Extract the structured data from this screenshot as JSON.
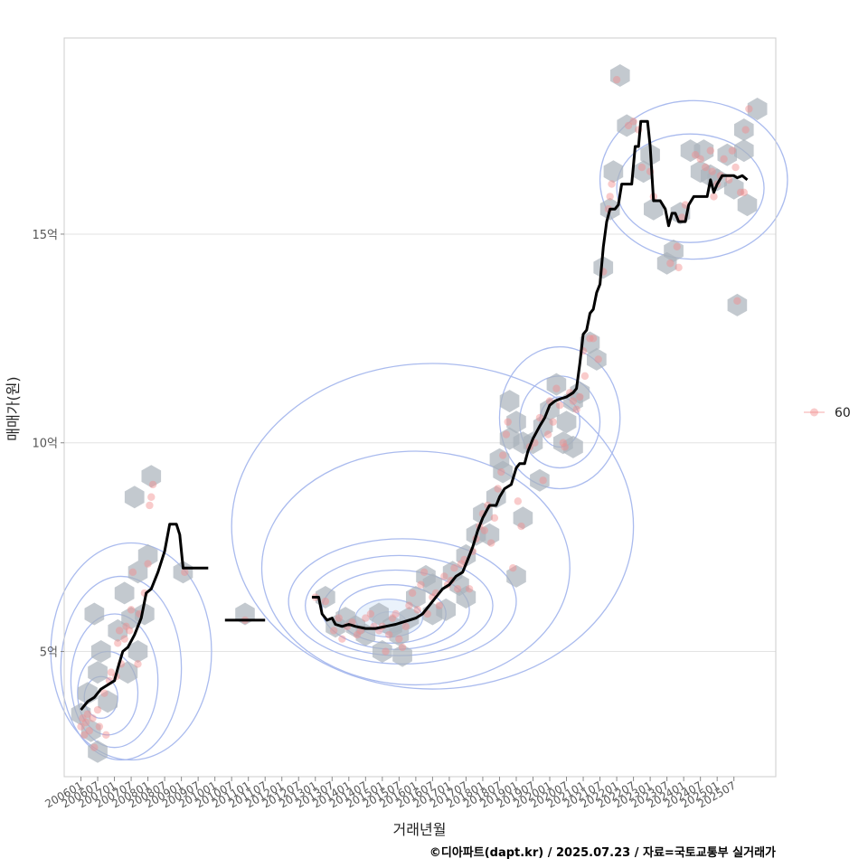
{
  "chart_data": {
    "type": "scatter",
    "xlabel": "거래년월",
    "ylabel": "매매가(원)",
    "caption": "©디아파트(dapt.kr) / 2025.07.23 / 자료=국토교통부 실거래가",
    "legend": {
      "label": "60",
      "color": "#f28b8b",
      "placement": "right"
    },
    "grid": true,
    "xlim": [
      2005.5,
      2026.75
    ],
    "ylim": [
      2.0,
      19.7
    ],
    "y_ticks": [
      {
        "value": 5,
        "label": "5억"
      },
      {
        "value": 10,
        "label": "10억"
      },
      {
        "value": 15,
        "label": "15억"
      }
    ],
    "x_ticks": [
      "200601",
      "200607",
      "200701",
      "200707",
      "200801",
      "200807",
      "200901",
      "200907",
      "201001",
      "201007",
      "201101",
      "201107",
      "201201",
      "201207",
      "201301",
      "201307",
      "201401",
      "201407",
      "201501",
      "201507",
      "201601",
      "201607",
      "201701",
      "201707",
      "201801",
      "201807",
      "201901",
      "201907",
      "202001",
      "202007",
      "202101",
      "202107",
      "202201",
      "202207",
      "202301",
      "202307",
      "202401",
      "202407",
      "202501",
      "202507"
    ],
    "colors": {
      "trend": "#000000",
      "points": "#f28b8b",
      "hex": "#a9b2bb",
      "contour": "#aabbee"
    },
    "trend_segments": [
      [
        [
          2006.0,
          3.6
        ],
        [
          2006.2,
          3.8
        ],
        [
          2006.4,
          3.9
        ],
        [
          2006.6,
          4.1
        ],
        [
          2006.8,
          4.2
        ],
        [
          2007.0,
          4.3
        ],
        [
          2007.1,
          4.6
        ],
        [
          2007.25,
          5.0
        ],
        [
          2007.4,
          5.1
        ],
        [
          2007.6,
          5.4
        ],
        [
          2007.8,
          5.8
        ],
        [
          2007.95,
          6.4
        ],
        [
          2008.1,
          6.5
        ],
        [
          2008.3,
          6.9
        ],
        [
          2008.5,
          7.4
        ],
        [
          2008.65,
          8.05
        ],
        [
          2008.85,
          8.05
        ],
        [
          2008.95,
          7.8
        ],
        [
          2009.05,
          7.0
        ],
        [
          2009.3,
          7.0
        ],
        [
          2009.6,
          7.0
        ],
        [
          2009.8,
          7.0
        ]
      ],
      [
        [
          2010.3,
          5.75
        ],
        [
          2010.9,
          5.75
        ],
        [
          2011.5,
          5.75
        ]
      ],
      [
        [
          2012.9,
          6.3
        ],
        [
          2013.1,
          6.3
        ],
        [
          2013.2,
          5.9
        ],
        [
          2013.35,
          5.75
        ],
        [
          2013.5,
          5.8
        ],
        [
          2013.6,
          5.65
        ],
        [
          2013.8,
          5.6
        ],
        [
          2014.0,
          5.65
        ],
        [
          2014.2,
          5.6
        ],
        [
          2014.5,
          5.55
        ],
        [
          2014.8,
          5.55
        ],
        [
          2015.1,
          5.6
        ],
        [
          2015.4,
          5.65
        ],
        [
          2015.6,
          5.7
        ],
        [
          2015.8,
          5.75
        ],
        [
          2016.0,
          5.8
        ],
        [
          2016.2,
          5.9
        ],
        [
          2016.4,
          6.1
        ],
        [
          2016.6,
          6.3
        ],
        [
          2016.8,
          6.5
        ],
        [
          2017.0,
          6.6
        ],
        [
          2017.2,
          6.8
        ],
        [
          2017.4,
          6.9
        ],
        [
          2017.55,
          7.2
        ],
        [
          2017.7,
          7.5
        ],
        [
          2017.85,
          7.9
        ],
        [
          2018.0,
          8.2
        ],
        [
          2018.2,
          8.5
        ],
        [
          2018.4,
          8.5
        ],
        [
          2018.5,
          8.7
        ],
        [
          2018.65,
          8.9
        ],
        [
          2018.85,
          9.0
        ],
        [
          2019.0,
          9.4
        ],
        [
          2019.1,
          9.5
        ],
        [
          2019.25,
          9.5
        ],
        [
          2019.35,
          9.8
        ],
        [
          2019.5,
          10.1
        ],
        [
          2019.7,
          10.4
        ],
        [
          2019.85,
          10.6
        ],
        [
          2020.0,
          10.9
        ],
        [
          2020.15,
          11.0
        ],
        [
          2020.3,
          11.05
        ],
        [
          2020.5,
          11.1
        ],
        [
          2020.7,
          11.2
        ],
        [
          2020.8,
          11.3
        ],
        [
          2020.9,
          11.9
        ],
        [
          2021.0,
          12.6
        ],
        [
          2021.1,
          12.7
        ],
        [
          2021.2,
          13.1
        ],
        [
          2021.3,
          13.2
        ],
        [
          2021.4,
          13.6
        ],
        [
          2021.5,
          13.8
        ],
        [
          2021.6,
          14.7
        ],
        [
          2021.7,
          15.3
        ],
        [
          2021.8,
          15.6
        ],
        [
          2021.95,
          15.6
        ],
        [
          2022.05,
          15.7
        ],
        [
          2022.15,
          16.2
        ],
        [
          2022.45,
          16.2
        ],
        [
          2022.55,
          17.1
        ],
        [
          2022.65,
          17.1
        ],
        [
          2022.72,
          17.7
        ],
        [
          2022.92,
          17.7
        ],
        [
          2023.0,
          17.1
        ],
        [
          2023.1,
          15.8
        ],
        [
          2023.3,
          15.8
        ],
        [
          2023.45,
          15.6
        ],
        [
          2023.55,
          15.2
        ],
        [
          2023.65,
          15.5
        ],
        [
          2023.75,
          15.5
        ],
        [
          2023.85,
          15.3
        ],
        [
          2024.05,
          15.3
        ],
        [
          2024.15,
          15.7
        ],
        [
          2024.3,
          15.9
        ],
        [
          2024.5,
          15.9
        ],
        [
          2024.7,
          15.9
        ],
        [
          2024.8,
          16.3
        ],
        [
          2024.9,
          16.0
        ],
        [
          2025.0,
          16.2
        ],
        [
          2025.15,
          16.4
        ],
        [
          2025.5,
          16.4
        ],
        [
          2025.6,
          16.35
        ],
        [
          2025.75,
          16.4
        ],
        [
          2025.9,
          16.3
        ]
      ]
    ],
    "points": [
      [
        2006.0,
        3.2
      ],
      [
        2006.05,
        3.4
      ],
      [
        2006.1,
        3.0
      ],
      [
        2006.15,
        3.3
      ],
      [
        2006.2,
        3.5
      ],
      [
        2006.25,
        3.1
      ],
      [
        2006.35,
        3.4
      ],
      [
        2006.4,
        2.7
      ],
      [
        2006.5,
        3.6
      ],
      [
        2006.55,
        3.2
      ],
      [
        2006.7,
        4.0
      ],
      [
        2006.75,
        3.0
      ],
      [
        2006.85,
        4.3
      ],
      [
        2006.9,
        4.5
      ],
      [
        2007.05,
        4.4
      ],
      [
        2007.1,
        5.2
      ],
      [
        2007.15,
        5.5
      ],
      [
        2007.2,
        4.7
      ],
      [
        2007.3,
        5.3
      ],
      [
        2007.35,
        5.6
      ],
      [
        2007.45,
        5.5
      ],
      [
        2007.5,
        6.0
      ],
      [
        2007.55,
        6.9
      ],
      [
        2007.7,
        4.7
      ],
      [
        2007.75,
        5.9
      ],
      [
        2007.9,
        6.4
      ],
      [
        2008.0,
        7.1
      ],
      [
        2008.05,
        8.5
      ],
      [
        2008.1,
        8.7
      ],
      [
        2008.15,
        9.0
      ],
      [
        2009.1,
        6.9
      ],
      [
        2010.9,
        5.75
      ],
      [
        2013.0,
        6.3
      ],
      [
        2013.3,
        6.2
      ],
      [
        2013.55,
        5.5
      ],
      [
        2013.7,
        5.8
      ],
      [
        2013.8,
        5.3
      ],
      [
        2013.95,
        5.6
      ],
      [
        2014.1,
        5.7
      ],
      [
        2014.25,
        5.4
      ],
      [
        2014.35,
        5.5
      ],
      [
        2014.5,
        5.8
      ],
      [
        2014.65,
        5.9
      ],
      [
        2014.75,
        5.6
      ],
      [
        2014.9,
        5.5
      ],
      [
        2015.0,
        5.6
      ],
      [
        2015.1,
        5.0
      ],
      [
        2015.2,
        5.4
      ],
      [
        2015.3,
        5.8
      ],
      [
        2015.4,
        5.9
      ],
      [
        2015.5,
        5.3
      ],
      [
        2015.6,
        5.1
      ],
      [
        2015.7,
        5.6
      ],
      [
        2015.8,
        6.1
      ],
      [
        2015.9,
        6.4
      ],
      [
        2016.05,
        6.0
      ],
      [
        2016.15,
        6.6
      ],
      [
        2016.25,
        6.9
      ],
      [
        2016.35,
        5.9
      ],
      [
        2016.5,
        6.3
      ],
      [
        2016.6,
        6.4
      ],
      [
        2016.7,
        6.1
      ],
      [
        2016.85,
        6.8
      ],
      [
        2016.95,
        6.6
      ],
      [
        2017.05,
        6.7
      ],
      [
        2017.15,
        7.0
      ],
      [
        2017.25,
        6.5
      ],
      [
        2017.35,
        7.1
      ],
      [
        2017.45,
        7.2
      ],
      [
        2017.6,
        6.5
      ],
      [
        2017.7,
        7.4
      ],
      [
        2017.8,
        7.7
      ],
      [
        2017.9,
        8.0
      ],
      [
        2018.0,
        8.3
      ],
      [
        2018.05,
        7.9
      ],
      [
        2018.15,
        8.5
      ],
      [
        2018.25,
        7.6
      ],
      [
        2018.35,
        8.2
      ],
      [
        2018.45,
        8.9
      ],
      [
        2018.55,
        9.3
      ],
      [
        2018.6,
        9.7
      ],
      [
        2018.7,
        10.2
      ],
      [
        2018.75,
        10.5
      ],
      [
        2018.9,
        7.0
      ],
      [
        2019.05,
        8.6
      ],
      [
        2019.15,
        8.0
      ],
      [
        2019.4,
        9.9
      ],
      [
        2019.55,
        10.0
      ],
      [
        2019.7,
        10.6
      ],
      [
        2019.8,
        9.1
      ],
      [
        2019.95,
        10.2
      ],
      [
        2020.0,
        11.0
      ],
      [
        2020.1,
        10.5
      ],
      [
        2020.2,
        11.3
      ],
      [
        2020.3,
        10.9
      ],
      [
        2020.4,
        10.0
      ],
      [
        2020.45,
        9.9
      ],
      [
        2020.6,
        11.2
      ],
      [
        2020.7,
        11.0
      ],
      [
        2020.8,
        10.8
      ],
      [
        2020.9,
        11.1
      ],
      [
        2021.0,
        12.2
      ],
      [
        2021.05,
        11.6
      ],
      [
        2021.2,
        12.5
      ],
      [
        2021.3,
        12.5
      ],
      [
        2021.45,
        12.0
      ],
      [
        2021.6,
        14.1
      ],
      [
        2021.75,
        15.6
      ],
      [
        2021.8,
        15.9
      ],
      [
        2021.85,
        16.2
      ],
      [
        2022.0,
        18.7
      ],
      [
        2022.35,
        17.6
      ],
      [
        2022.5,
        17.7
      ],
      [
        2022.65,
        17.5
      ],
      [
        2022.75,
        16.6
      ],
      [
        2023.0,
        16.5
      ],
      [
        2023.1,
        15.9
      ],
      [
        2023.6,
        14.3
      ],
      [
        2023.8,
        14.7
      ],
      [
        2023.85,
        14.2
      ],
      [
        2023.95,
        15.4
      ],
      [
        2024.05,
        15.7
      ],
      [
        2024.35,
        16.9
      ],
      [
        2024.5,
        16.8
      ],
      [
        2024.65,
        16.6
      ],
      [
        2024.8,
        17.0
      ],
      [
        2024.85,
        16.5
      ],
      [
        2024.9,
        15.9
      ],
      [
        2025.0,
        16.2
      ],
      [
        2025.1,
        16.4
      ],
      [
        2025.2,
        16.8
      ],
      [
        2025.35,
        16.3
      ],
      [
        2025.45,
        17.0
      ],
      [
        2025.55,
        16.6
      ],
      [
        2025.6,
        13.4
      ],
      [
        2025.7,
        16.0
      ],
      [
        2025.8,
        16.0
      ],
      [
        2025.85,
        17.5
      ],
      [
        2025.95,
        18.0
      ]
    ],
    "hex_bins": [
      [
        2006.0,
        3.5
      ],
      [
        2006.3,
        3.1
      ],
      [
        2006.5,
        2.6
      ],
      [
        2006.2,
        4.0
      ],
      [
        2006.5,
        4.5
      ],
      [
        2006.4,
        5.9
      ],
      [
        2006.6,
        5.0
      ],
      [
        2006.8,
        3.8
      ],
      [
        2007.1,
        5.5
      ],
      [
        2007.3,
        6.4
      ],
      [
        2007.4,
        4.5
      ],
      [
        2007.7,
        5.0
      ],
      [
        2007.5,
        5.8
      ],
      [
        2007.9,
        5.9
      ],
      [
        2007.7,
        6.9
      ],
      [
        2007.6,
        8.7
      ],
      [
        2008.0,
        7.3
      ],
      [
        2008.1,
        9.2
      ],
      [
        2009.05,
        6.9
      ],
      [
        2010.9,
        5.9
      ],
      [
        2013.3,
        6.3
      ],
      [
        2013.6,
        5.6
      ],
      [
        2013.9,
        5.8
      ],
      [
        2014.2,
        5.6
      ],
      [
        2014.5,
        5.4
      ],
      [
        2014.9,
        5.9
      ],
      [
        2015.0,
        5.0
      ],
      [
        2015.3,
        5.6
      ],
      [
        2015.5,
        5.4
      ],
      [
        2015.6,
        4.9
      ],
      [
        2015.8,
        5.8
      ],
      [
        2016.0,
        6.3
      ],
      [
        2016.3,
        6.8
      ],
      [
        2016.5,
        6.6
      ],
      [
        2016.5,
        5.9
      ],
      [
        2016.9,
        6.0
      ],
      [
        2017.1,
        6.9
      ],
      [
        2017.3,
        6.6
      ],
      [
        2017.5,
        7.3
      ],
      [
        2017.5,
        6.3
      ],
      [
        2017.8,
        7.8
      ],
      [
        2018.0,
        8.3
      ],
      [
        2018.2,
        7.8
      ],
      [
        2018.4,
        8.7
      ],
      [
        2018.6,
        9.3
      ],
      [
        2018.5,
        9.6
      ],
      [
        2018.8,
        10.1
      ],
      [
        2018.8,
        11.0
      ],
      [
        2019.0,
        10.5
      ],
      [
        2019.2,
        10.0
      ],
      [
        2019.2,
        8.2
      ],
      [
        2019.0,
        6.8
      ],
      [
        2019.5,
        10.0
      ],
      [
        2019.7,
        9.1
      ],
      [
        2019.8,
        10.4
      ],
      [
        2020.0,
        10.8
      ],
      [
        2020.2,
        11.4
      ],
      [
        2020.4,
        10.0
      ],
      [
        2020.5,
        10.5
      ],
      [
        2020.7,
        11.0
      ],
      [
        2020.7,
        9.9
      ],
      [
        2020.9,
        11.2
      ],
      [
        2021.2,
        12.4
      ],
      [
        2021.4,
        12.0
      ],
      [
        2021.6,
        14.2
      ],
      [
        2021.8,
        15.6
      ],
      [
        2021.9,
        16.5
      ],
      [
        2022.1,
        18.8
      ],
      [
        2022.3,
        17.6
      ],
      [
        2022.8,
        16.5
      ],
      [
        2023.0,
        16.9
      ],
      [
        2023.1,
        15.6
      ],
      [
        2023.5,
        14.3
      ],
      [
        2023.7,
        14.6
      ],
      [
        2023.9,
        15.5
      ],
      [
        2024.2,
        17.0
      ],
      [
        2024.5,
        16.5
      ],
      [
        2024.6,
        17.0
      ],
      [
        2024.8,
        16.4
      ],
      [
        2025.0,
        16.3
      ],
      [
        2025.3,
        16.9
      ],
      [
        2025.5,
        16.1
      ],
      [
        2025.6,
        13.3
      ],
      [
        2025.8,
        17.5
      ],
      [
        2025.9,
        15.7
      ],
      [
        2026.2,
        18.0
      ],
      [
        2025.8,
        17.0
      ]
    ],
    "density_contours": [
      {
        "cx": 2015.2,
        "cy": 5.7,
        "rx": 0.5,
        "ry": 0.25,
        "rot": 0
      },
      {
        "cx": 2015.2,
        "cy": 5.8,
        "rx": 1.0,
        "ry": 0.45,
        "rot": 0
      },
      {
        "cx": 2015.3,
        "cy": 5.9,
        "rx": 1.6,
        "ry": 0.7,
        "rot": 0
      },
      {
        "cx": 2015.4,
        "cy": 6.0,
        "rx": 2.2,
        "ry": 0.95,
        "rot": 0
      },
      {
        "cx": 2015.5,
        "cy": 6.1,
        "rx": 2.8,
        "ry": 1.2,
        "rot": 0
      },
      {
        "cx": 2015.6,
        "cy": 6.2,
        "rx": 3.4,
        "ry": 1.5,
        "rot": 0
      },
      {
        "cx": 2016.0,
        "cy": 7.0,
        "rx": 4.6,
        "ry": 2.8,
        "rot": 0
      },
      {
        "cx": 2016.5,
        "cy": 8.0,
        "rx": 6.0,
        "ry": 3.9,
        "rot": 0
      },
      {
        "cx": 2020.3,
        "cy": 10.5,
        "rx": 0.6,
        "ry": 0.6,
        "rot": 0
      },
      {
        "cx": 2020.3,
        "cy": 10.5,
        "rx": 1.2,
        "ry": 1.1,
        "rot": 0
      },
      {
        "cx": 2020.3,
        "cy": 10.6,
        "rx": 1.8,
        "ry": 1.7,
        "rot": 0
      },
      {
        "cx": 2006.6,
        "cy": 3.9,
        "rx": 0.5,
        "ry": 0.5,
        "rot": 0
      },
      {
        "cx": 2006.8,
        "cy": 4.0,
        "rx": 0.9,
        "ry": 1.0,
        "rot": 0
      },
      {
        "cx": 2007.0,
        "cy": 4.3,
        "rx": 1.3,
        "ry": 1.6,
        "rot": 0
      },
      {
        "cx": 2007.2,
        "cy": 4.6,
        "rx": 1.8,
        "ry": 2.2,
        "rot": 0
      },
      {
        "cx": 2007.5,
        "cy": 5.0,
        "rx": 2.4,
        "ry": 2.6,
        "rot": 0
      },
      {
        "cx": 2024.2,
        "cy": 16.1,
        "rx": 2.2,
        "ry": 1.3,
        "rot": 0
      },
      {
        "cx": 2024.3,
        "cy": 16.3,
        "rx": 2.8,
        "ry": 1.9,
        "rot": 0
      }
    ]
  }
}
